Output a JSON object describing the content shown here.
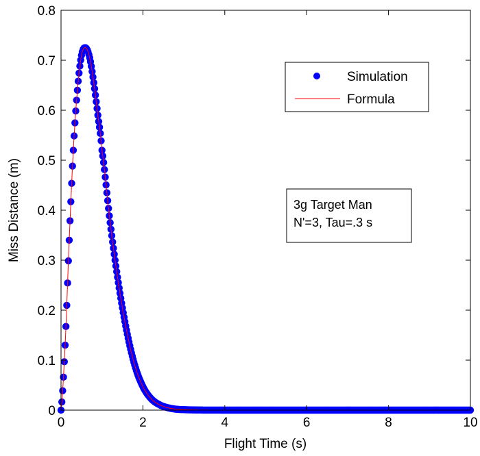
{
  "chart_data": {
    "type": "scatter",
    "title": "",
    "xlabel": "Flight Time (s)",
    "ylabel": "Miss Distance (m)",
    "xlim": [
      0,
      10
    ],
    "ylim": [
      0,
      0.8
    ],
    "xticks": [
      0,
      2,
      4,
      6,
      8,
      10
    ],
    "yticks": [
      0,
      0.1,
      0.2,
      0.3,
      0.4,
      0.5,
      0.6,
      0.7,
      0.8
    ],
    "xtick_labels": [
      "0",
      "2",
      "4",
      "6",
      "8",
      "10"
    ],
    "ytick_labels": [
      "0",
      "0.1",
      "0.2",
      "0.3",
      "0.4",
      "0.5",
      "0.6",
      "0.7",
      "0.8"
    ],
    "grid": false,
    "legend_position": "top-right",
    "legend": [
      "Simulation",
      "Formula"
    ],
    "annotation_lines": [
      "3g Target Man",
      "N'=3, Tau=.3 s"
    ],
    "series": [
      {
        "name": "Simulation",
        "style": "markers",
        "color": "#0000ff",
        "x": [
          0,
          0.1,
          0.2,
          0.3,
          0.4,
          0.5,
          0.6,
          0.7,
          0.8,
          0.9,
          1.0,
          1.2,
          1.4,
          1.6,
          1.8,
          2.0,
          2.2,
          2.4,
          2.6,
          2.8,
          3.0,
          3.2,
          3.4,
          3.6,
          4,
          5,
          6,
          7,
          8,
          9,
          10
        ],
        "y": [
          0,
          0.13,
          0.34,
          0.52,
          0.64,
          0.71,
          0.725,
          0.705,
          0.655,
          0.59,
          0.52,
          0.375,
          0.255,
          0.16,
          0.09,
          0.047,
          0.023,
          0.011,
          0.005,
          0.002,
          0.001,
          0.0005,
          0.0002,
          0.0001,
          0,
          0,
          0,
          0,
          0,
          0,
          0
        ]
      },
      {
        "name": "Formula",
        "style": "line",
        "color": "#ff0000",
        "x": [
          0,
          0.1,
          0.2,
          0.3,
          0.4,
          0.5,
          0.6,
          0.7,
          0.8,
          0.9,
          1.0,
          1.2,
          1.4,
          1.6,
          1.8,
          2.0,
          2.2,
          2.4,
          2.6,
          2.8,
          3.0,
          3.2,
          3.4,
          3.6,
          4,
          5,
          6,
          7,
          8,
          9,
          10
        ],
        "y": [
          0,
          0.13,
          0.34,
          0.52,
          0.64,
          0.71,
          0.725,
          0.705,
          0.655,
          0.59,
          0.52,
          0.375,
          0.255,
          0.16,
          0.09,
          0.047,
          0.023,
          0.011,
          0.005,
          0.002,
          0.001,
          0.0005,
          0.0002,
          0.0001,
          0,
          0,
          0,
          0,
          0,
          0,
          0
        ]
      }
    ]
  }
}
